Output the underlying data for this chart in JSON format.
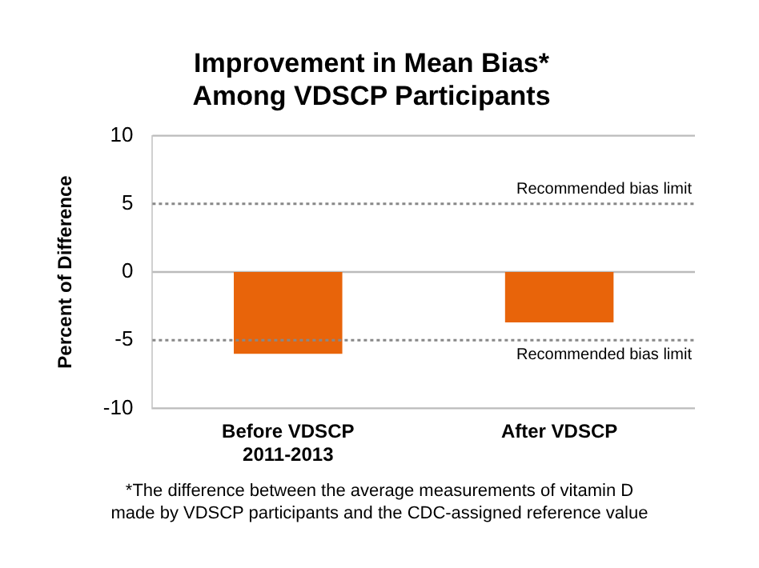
{
  "chart_data": {
    "type": "bar",
    "title": "Improvement in Mean Bias*\nAmong VDSCP Participants",
    "ylabel": "Percent of Difference",
    "categories": [
      "Before VDSCP\n2011-2013",
      "After VDSCP"
    ],
    "values": [
      -6.0,
      -3.7
    ],
    "color": "#e8640a",
    "ylim": [
      -10,
      10
    ],
    "yticks": [
      -10,
      -5,
      0,
      5,
      10
    ],
    "grid": false,
    "ref_lines": [
      {
        "axis": "y",
        "value": 5,
        "label": "Recommended bias limit",
        "line_style": "dotted"
      },
      {
        "axis": "y",
        "value": -5,
        "label": "Recommended bias limit",
        "line_style": "dotted"
      }
    ],
    "annotations": [
      "*The difference between the average measurements of vitamin D\nmade by VDSCP participants and the CDC-assigned reference value"
    ]
  }
}
